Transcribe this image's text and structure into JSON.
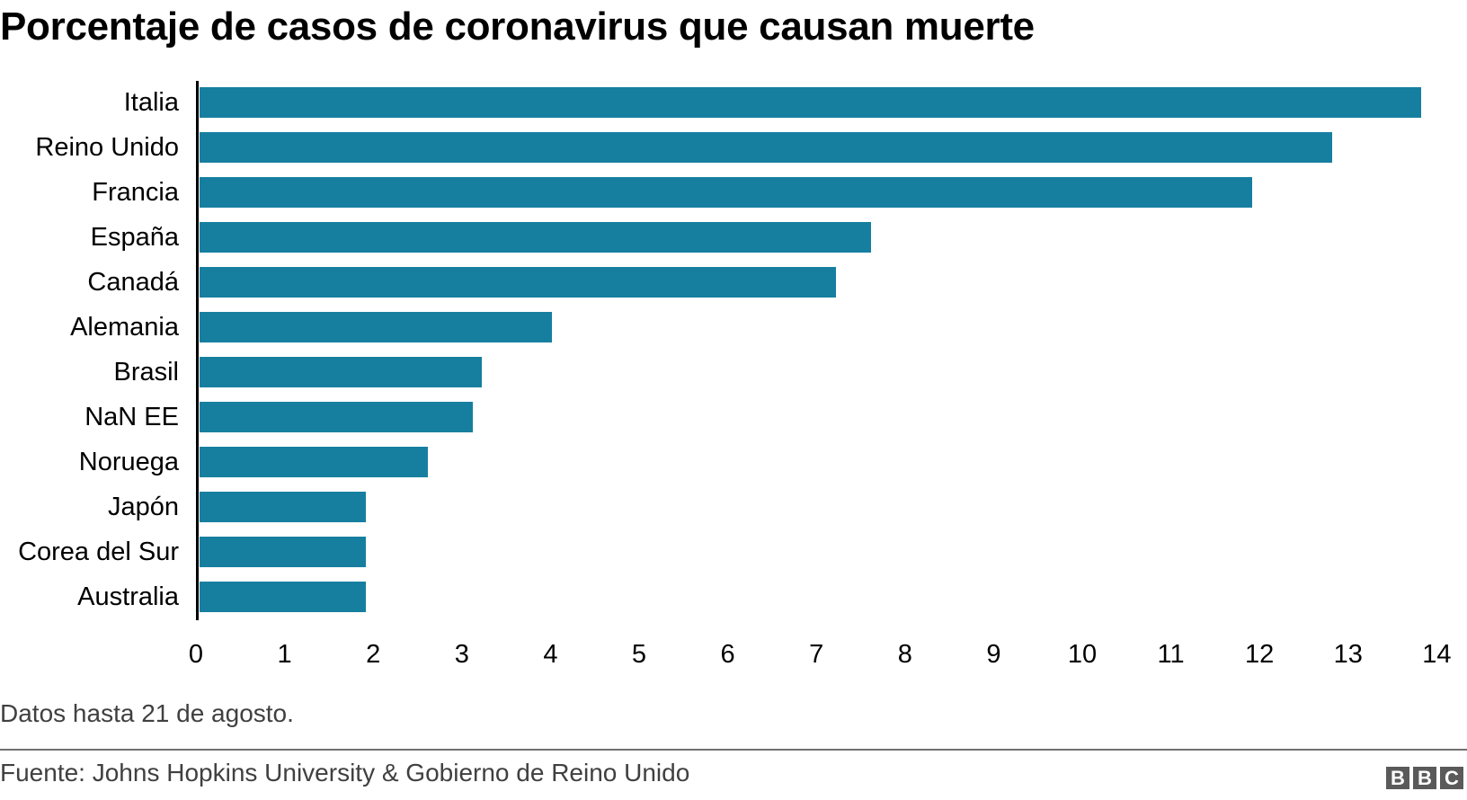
{
  "chart_data": {
    "type": "bar",
    "orientation": "horizontal",
    "title": "Porcentaje de casos de coronavirus que causan muerte",
    "categories": [
      "Italia",
      "Reino Unido",
      "Francia",
      "España",
      "Canadá",
      "Alemania",
      "Brasil",
      "NaN EE",
      "Noruega",
      "Japón",
      "Corea del Sur",
      "Australia"
    ],
    "values": [
      13.8,
      12.8,
      11.9,
      7.6,
      7.2,
      4.0,
      3.2,
      3.1,
      2.6,
      1.9,
      1.9,
      1.9
    ],
    "xlabel": "",
    "ylabel": "",
    "xlim": [
      0,
      14
    ],
    "xticks": [
      "0",
      "1",
      "2",
      "3",
      "4",
      "5",
      "6",
      "7",
      "8",
      "9",
      "10",
      "11",
      "12",
      "13",
      "14"
    ],
    "grid": false,
    "legend": null,
    "bar_color": "#167fa0"
  },
  "footer": {
    "note": "Datos hasta 21 de agosto.",
    "source": "Fuente: Johns Hopkins University & Gobierno de Reino Unido",
    "logo": [
      "B",
      "B",
      "C"
    ]
  }
}
